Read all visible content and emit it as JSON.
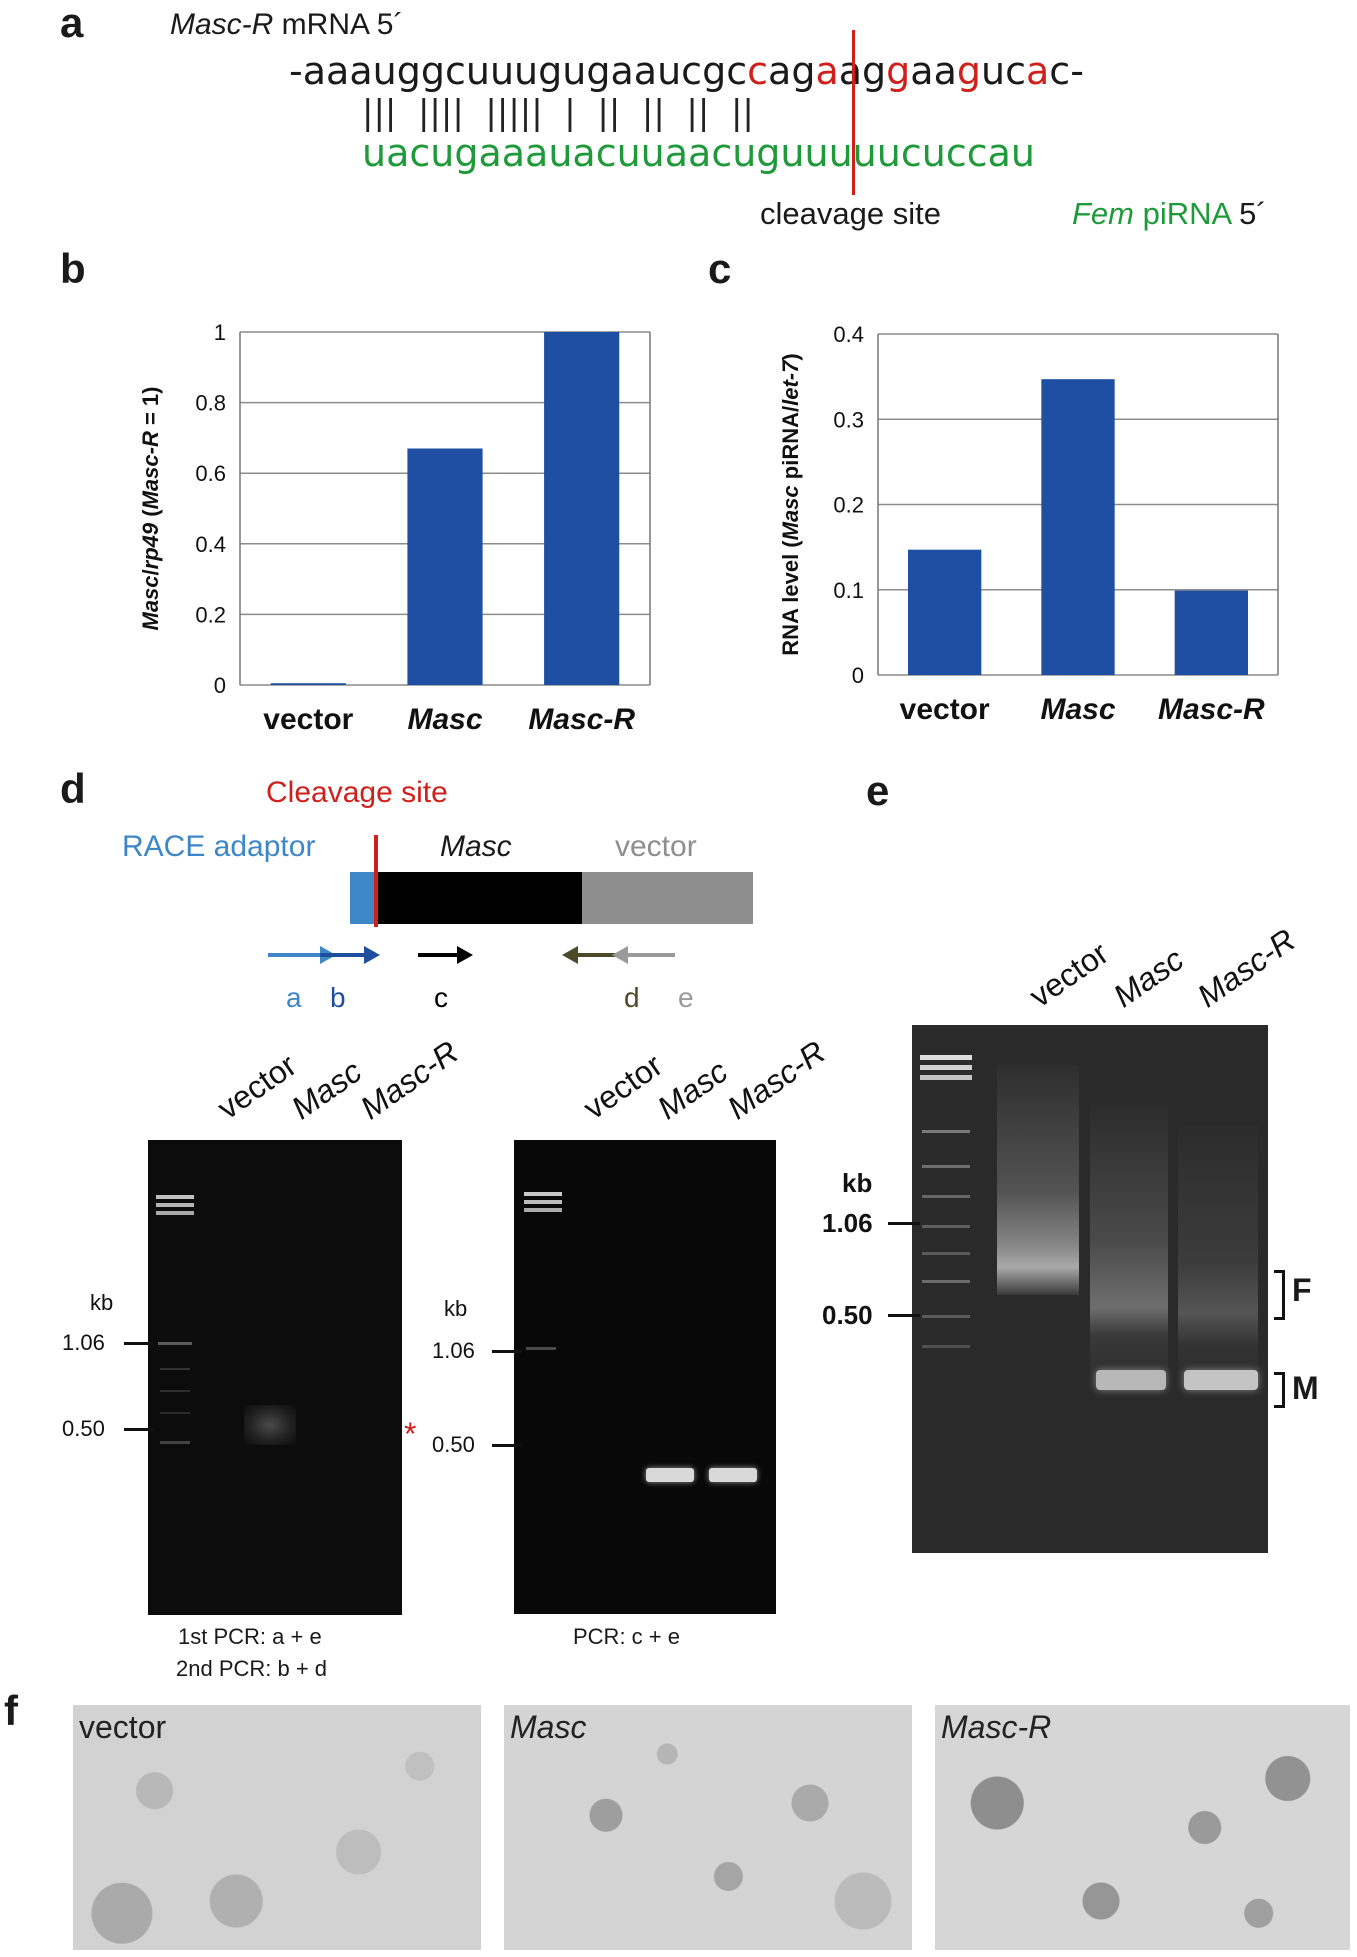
{
  "panels": {
    "a": {
      "letter": "a",
      "mrna_label_italic": "Masc-R",
      "mrna_label_rest": " mRNA 5´",
      "mrna_sequence": "-aaauggcuuugugaaucgccagaaggaagucac-",
      "mismatch_indices": [
        20,
        23,
        26,
        29,
        32
      ],
      "pairing_marks": "|||  ||||  |||||  |  ||  ||  ||  ||",
      "pirna_sequence": "uacugaaauacuuaacuguuuuucuccau",
      "cleavage_label": "cleavage site",
      "pirna_label_italic": "Fem",
      "pirna_label_green": " piRNA",
      "pirna_label_end": " 5´",
      "colors": {
        "mismatch": "#d0201b",
        "pirna": "#1f9a3a",
        "cleavage_line": "#d0201b"
      }
    },
    "b": {
      "letter": "b",
      "ylabel_parts": [
        "Masc",
        "/",
        "rp49",
        " (",
        "Masc-R",
        " = 1)"
      ],
      "ylabel_italic": [
        true,
        false,
        true,
        false,
        true,
        false
      ]
    },
    "c": {
      "letter": "c",
      "ylabel_parts": [
        "RNA level (",
        "Masc",
        " piRNA/",
        "let-7",
        ")"
      ],
      "ylabel_italic": [
        false,
        true,
        false,
        true,
        false
      ]
    },
    "d": {
      "letter": "d",
      "cleavage_label": "Cleavage site",
      "race_label": "RACE adaptor",
      "masc_label": "Masc",
      "vector_label": "vector",
      "primers": [
        "a",
        "b",
        "c",
        "d",
        "e"
      ],
      "lanes": [
        "vector",
        "Masc",
        "Masc-R"
      ],
      "kb_label": "kb",
      "markers": [
        "1.06",
        "0.50"
      ],
      "star": "*",
      "gel1_caption_1": "1st PCR: a + e",
      "gel1_caption_2": "2nd PCR: b + d",
      "gel2_caption": "PCR: c + e",
      "colors": {
        "race": "#3d86c8",
        "primer_b": "#1f4e9c",
        "masc_box": "#000000",
        "vector_box": "#8e8e8e",
        "primer_d": "#4d4a2a",
        "primer_e": "#9a9a9a",
        "cleavage": "#d0201b"
      }
    },
    "e": {
      "letter": "e",
      "lanes": [
        "vector",
        "Masc",
        "Masc-R"
      ],
      "kb_label": "kb",
      "markers": [
        "1.06",
        "0.50"
      ],
      "bracket_F": "F",
      "bracket_M": "M"
    },
    "f": {
      "letter": "f",
      "images": [
        "vector",
        "Masc",
        "Masc-R"
      ]
    }
  },
  "chart_data": [
    {
      "type": "bar",
      "categories": [
        "vector",
        "Masc",
        "Masc-R"
      ],
      "values": [
        0.005,
        0.67,
        1.0
      ],
      "ylim": [
        0,
        1
      ],
      "yticks": [
        "0",
        "0.2",
        "0.4",
        "0.6",
        "0.8",
        "1"
      ],
      "ytick_values": [
        0,
        0.2,
        0.4,
        0.6,
        0.8,
        1
      ],
      "ylabel": "Masc/rp49 (Masc-R = 1)",
      "bar_color": "#1f4fa3",
      "grid": true
    },
    {
      "type": "bar",
      "categories": [
        "vector",
        "Masc",
        "Masc-R"
      ],
      "values": [
        0.147,
        0.347,
        0.099
      ],
      "ylim": [
        0,
        0.4
      ],
      "yticks": [
        "0",
        "0.1",
        "0.2",
        "0.3",
        "0.4"
      ],
      "ytick_values": [
        0,
        0.1,
        0.2,
        0.3,
        0.4
      ],
      "ylabel": "RNA level (Masc piRNA/let-7)",
      "bar_color": "#1f4fa3",
      "grid": true
    }
  ]
}
